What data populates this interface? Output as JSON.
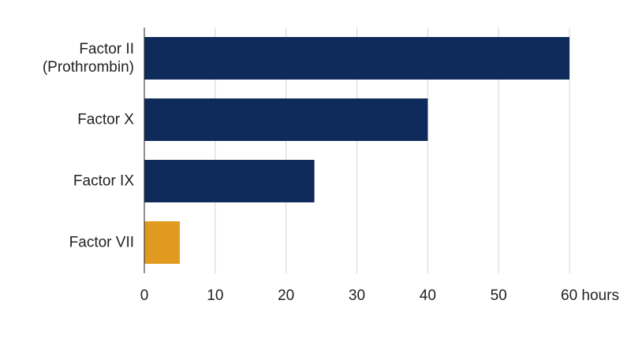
{
  "chart_data": {
    "type": "barh",
    "categories": [
      "Factor II\n(Prothrombin)",
      "Factor X",
      "Factor IX",
      "Factor VII"
    ],
    "values": [
      60,
      40,
      24,
      5
    ],
    "colors": [
      "#0f2b5b",
      "#0f2b5b",
      "#0f2b5b",
      "#e09a1f"
    ],
    "xlim": [
      0,
      60
    ],
    "xticks": [
      0,
      10,
      20,
      30,
      40,
      50,
      {
        "value": 60,
        "label": "60 hours"
      }
    ],
    "grid": true
  }
}
